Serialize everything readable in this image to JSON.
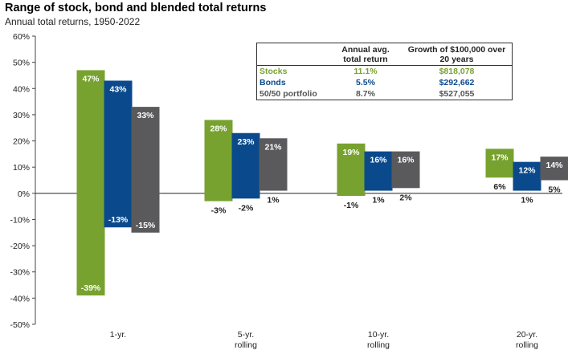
{
  "title": "Range of stock, bond and blended total returns",
  "subtitle": "Annual total returns, 1950-2022",
  "colors": {
    "stocks": "#78A22F",
    "bonds": "#0A4A8C",
    "portfolio": "#5A5A5C",
    "stocks_text": "#78A22F",
    "bonds_text": "#0A4A8C",
    "portfolio_text": "#555555"
  },
  "table": {
    "headers": [
      "",
      "Annual avg.\ntotal return",
      "Growth of $100,000 over\n20 years"
    ],
    "rows": [
      {
        "name": "Stocks",
        "avg": "11.1%",
        "growth": "$818,078"
      },
      {
        "name": "Bonds",
        "avg": "5.5%",
        "growth": "$292,662"
      },
      {
        "name": "50/50 portfolio",
        "avg": "8.7%",
        "growth": "$527,055"
      }
    ]
  },
  "chart_data": {
    "type": "bar",
    "subtype": "floating-range",
    "categories": [
      "1-yr.",
      "5-yr.\nrolling",
      "10-yr.\nrolling",
      "20-yr.\nrolling"
    ],
    "series": [
      {
        "name": "Stocks",
        "max": [
          47,
          28,
          19,
          17
        ],
        "min": [
          -39,
          -3,
          -1,
          6
        ],
        "max_labels": [
          "47%",
          "28%",
          "19%",
          "17%"
        ],
        "min_labels": [
          "-39%",
          "-3%",
          "-1%",
          "6%"
        ]
      },
      {
        "name": "Bonds",
        "max": [
          43,
          23,
          16,
          12
        ],
        "min": [
          -13,
          -2,
          1,
          1
        ],
        "max_labels": [
          "43%",
          "23%",
          "16%",
          "12%"
        ],
        "min_labels": [
          "-13%",
          "-2%",
          "1%",
          "1%"
        ]
      },
      {
        "name": "50/50 portfolio",
        "max": [
          33,
          21,
          16,
          14
        ],
        "min": [
          -15,
          1,
          2,
          5
        ],
        "max_labels": [
          "33%",
          "21%",
          "16%",
          "14%"
        ],
        "min_labels": [
          "-15%",
          "1%",
          "2%",
          "5%"
        ]
      }
    ],
    "ylim": [
      -50,
      60
    ],
    "yticks": [
      -50,
      -40,
      -30,
      -20,
      -10,
      0,
      10,
      20,
      30,
      40,
      50,
      60
    ],
    "ytick_labels": [
      "-50%",
      "-40%",
      "-30%",
      "-20%",
      "-10%",
      "0%",
      "10%",
      "20%",
      "30%",
      "40%",
      "50%",
      "60%"
    ],
    "grid": false
  }
}
